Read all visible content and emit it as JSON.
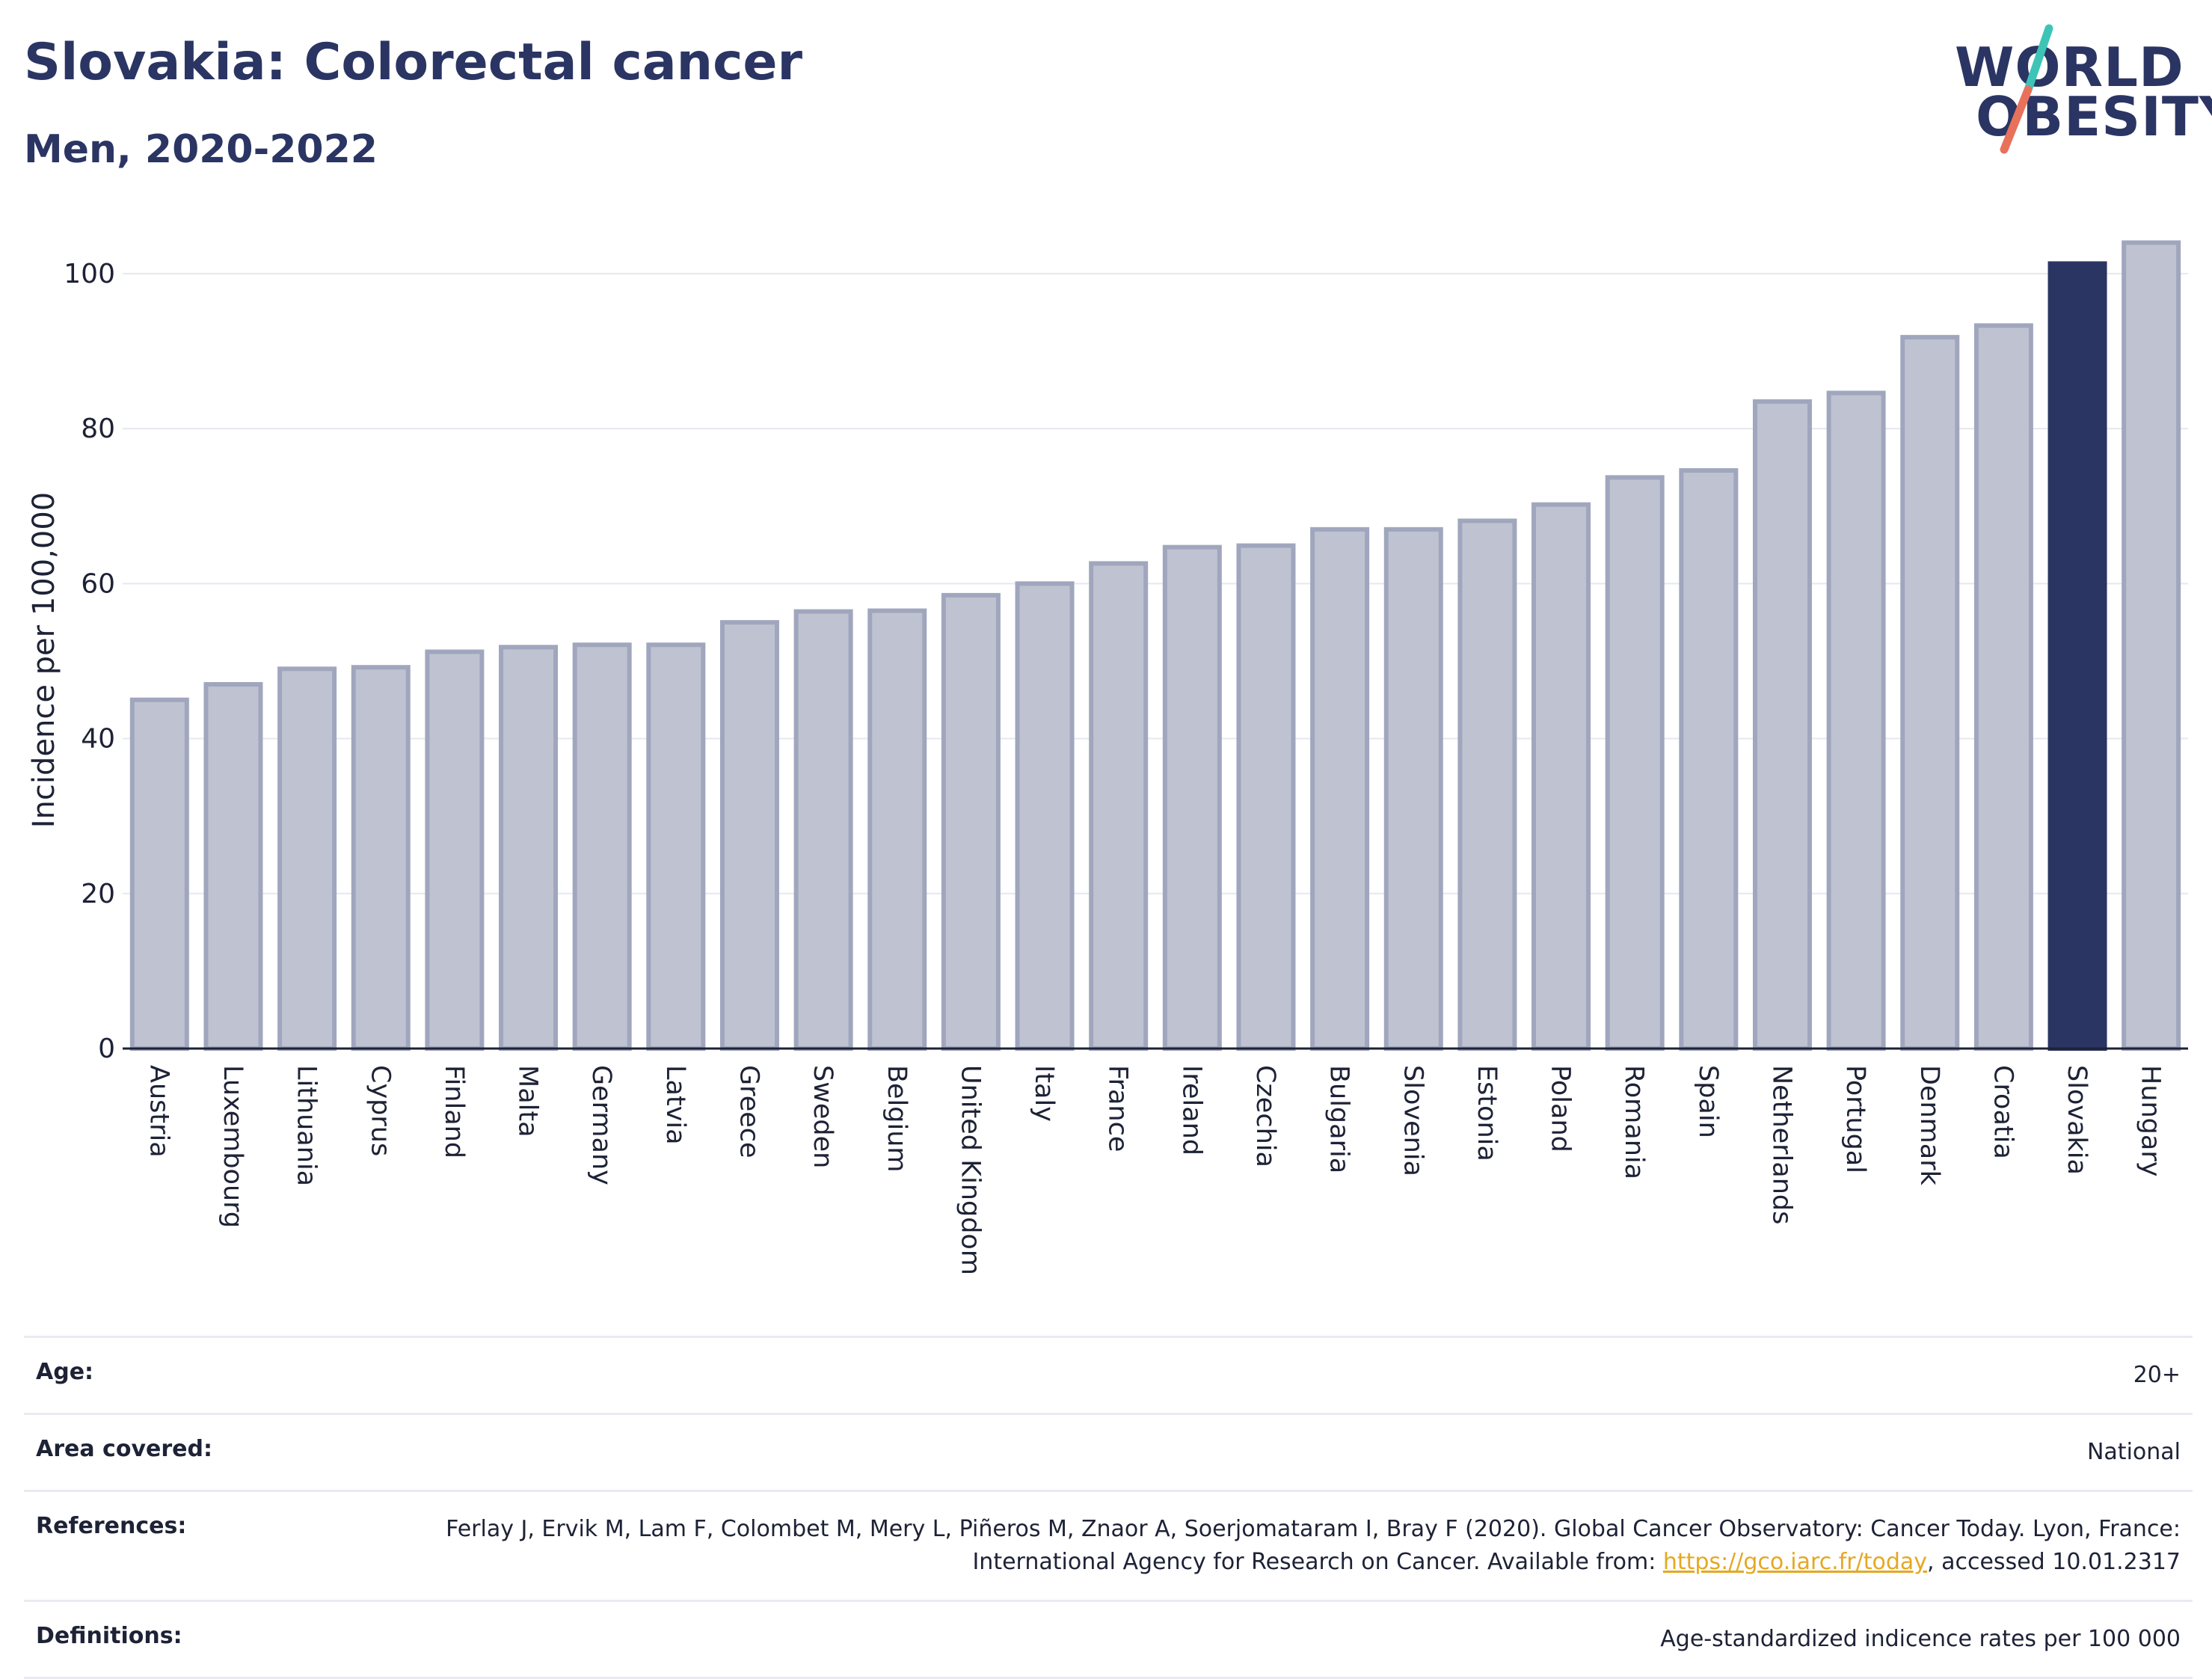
{
  "header": {
    "title": "Slovakia: Colorectal cancer",
    "subtitle": "Men, 2020-2022"
  },
  "logo": {
    "line1": "WORLD",
    "line2": "OBESITY",
    "slash_colors": [
      "#3ec4b6",
      "#e8715c"
    ]
  },
  "colors": {
    "bar_fill": "#bfc3d1",
    "bar_stroke": "#a0a6bd",
    "highlight": "#2b3563",
    "grid": "#e6e8ef",
    "axis": "#1d2236"
  },
  "chart_data": {
    "type": "bar",
    "ylabel": "Incidence per 100,000",
    "ylim": [
      0,
      108
    ],
    "yticks": [
      0,
      20,
      40,
      60,
      80,
      100
    ],
    "grid": true,
    "highlight_category": "Slovakia",
    "categories": [
      "Austria",
      "Luxembourg",
      "Lithuania",
      "Cyprus",
      "Finland",
      "Malta",
      "Germany",
      "Latvia",
      "Greece",
      "Sweden",
      "Belgium",
      "United Kingdom",
      "Italy",
      "France",
      "Ireland",
      "Czechia",
      "Bulgaria",
      "Slovenia",
      "Estonia",
      "Poland",
      "Romania",
      "Spain",
      "Netherlands",
      "Portugal",
      "Denmark",
      "Croatia",
      "Slovakia",
      "Hungary"
    ],
    "values": [
      45.0,
      47.0,
      49.0,
      49.2,
      51.2,
      51.8,
      52.1,
      52.1,
      55.0,
      56.4,
      56.5,
      58.5,
      60.0,
      62.6,
      64.7,
      64.9,
      67.0,
      67.0,
      68.1,
      70.2,
      73.7,
      74.6,
      83.5,
      84.6,
      91.8,
      93.3,
      101.3,
      104.0
    ]
  },
  "info": {
    "age_label": "Age:",
    "age_value": "20+",
    "area_label": "Area covered:",
    "area_value": "National",
    "references_label": "References:",
    "references_text_1": "Ferlay J, Ervik M, Lam F, Colombet M, Mery L, Piñeros M, Znaor A, Soerjomataram I, Bray F (2020). Global Cancer Observatory: Cancer Today. Lyon, France: International Agency for Research on Cancer. Available from: ",
    "references_link": "https://gco.iarc.fr/today",
    "references_text_2": ", accessed 10.01.2317",
    "definitions_label": "Definitions:",
    "definitions_value": "Age-standardized indicence rates per 100 000"
  }
}
